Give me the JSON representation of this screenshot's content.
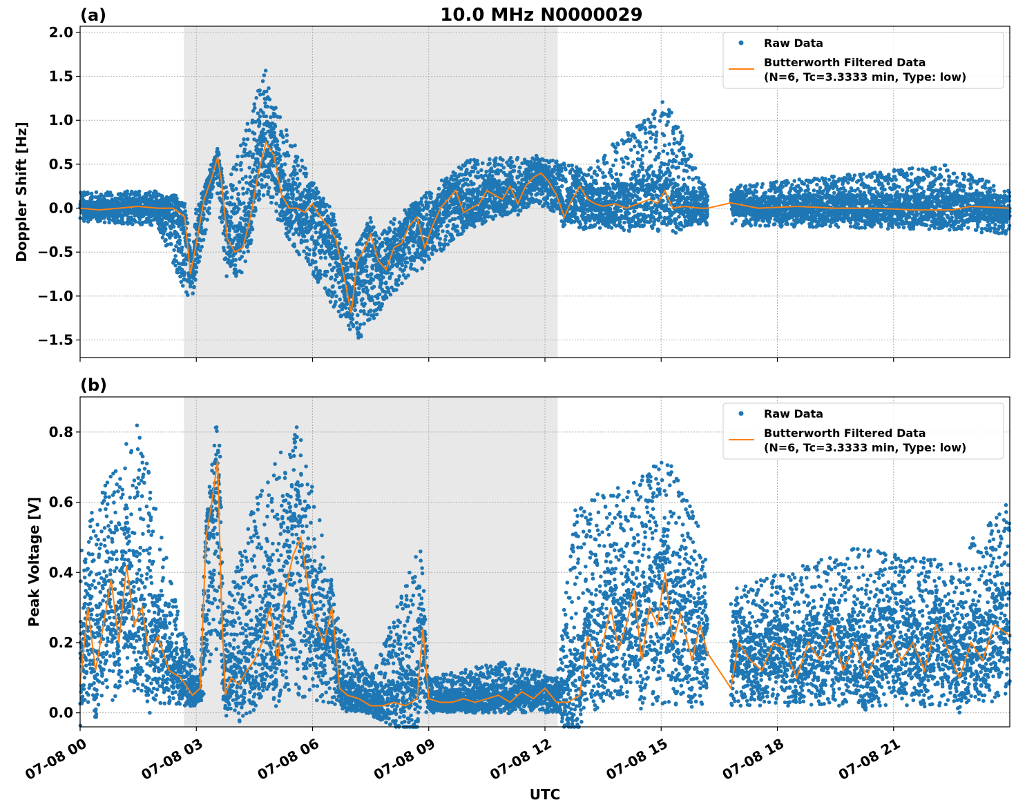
{
  "figure": {
    "title": "10.0 MHz N0000029",
    "xlabel": "UTC"
  },
  "colors": {
    "raw": "#1f77b4",
    "filtered": "#ff7f0e",
    "shade": "#e8e8e8",
    "grid": "#b0b0b0"
  },
  "chart_data": [
    {
      "type": "scatter",
      "panel_label": "(a)",
      "ylabel": "Doppler Shift [Hz]",
      "xlim_hours": [
        0,
        24
      ],
      "ylim": [
        -1.7,
        2.07
      ],
      "yticks": [
        -1.5,
        -1.0,
        -0.5,
        0.0,
        0.5,
        1.0,
        1.5,
        2.0
      ],
      "ytick_labels": [
        "−1.5",
        "−1.0",
        "−0.5",
        "0.0",
        "0.5",
        "1.0",
        "1.5",
        "2.0"
      ],
      "grid": true,
      "legend_position": "upper right",
      "legend": [
        "Raw Data",
        "Butterworth Filtered Data",
        "(N=6, Tc=3.3333 min, Type: low)"
      ],
      "shaded_hours": [
        2.68,
        12.33
      ],
      "data_gap_hours": [
        16.2,
        16.8
      ],
      "series": [
        {
          "name": "Butterworth Filtered Data",
          "x_hours": [
            0.0,
            0.5,
            1.0,
            1.5,
            2.0,
            2.4,
            2.7,
            2.85,
            3.0,
            3.2,
            3.4,
            3.55,
            3.65,
            3.8,
            4.0,
            4.2,
            4.4,
            4.6,
            4.8,
            5.0,
            5.2,
            5.4,
            5.6,
            5.8,
            6.0,
            6.2,
            6.4,
            6.6,
            6.8,
            7.0,
            7.15,
            7.3,
            7.5,
            7.7,
            7.9,
            8.1,
            8.3,
            8.5,
            8.7,
            8.9,
            9.1,
            9.3,
            9.5,
            9.7,
            9.9,
            10.1,
            10.3,
            10.5,
            10.7,
            10.9,
            11.1,
            11.3,
            11.5,
            11.7,
            11.9,
            12.1,
            12.3,
            12.5,
            12.7,
            12.9,
            13.1,
            13.3,
            13.5,
            13.8,
            14.1,
            14.4,
            14.7,
            14.9,
            15.1,
            15.3,
            15.6,
            16.0,
            16.2,
            16.8,
            17.5,
            18.5,
            19.5,
            20.5,
            21.5,
            22.5,
            23.0,
            24.0
          ],
          "y": [
            0.0,
            -0.02,
            0.0,
            0.02,
            0.0,
            0.0,
            -0.1,
            -0.75,
            -0.4,
            0.1,
            0.35,
            0.58,
            0.3,
            -0.35,
            -0.5,
            -0.45,
            -0.1,
            0.4,
            0.75,
            0.6,
            0.15,
            0.0,
            0.0,
            -0.05,
            0.05,
            -0.1,
            -0.2,
            -0.35,
            -0.75,
            -1.2,
            -0.6,
            -0.5,
            -0.3,
            -0.6,
            -0.7,
            -0.45,
            -0.4,
            -0.2,
            -0.1,
            -0.45,
            -0.2,
            0.0,
            0.1,
            0.2,
            -0.05,
            0.0,
            0.05,
            0.2,
            0.15,
            0.1,
            0.25,
            0.05,
            0.25,
            0.35,
            0.4,
            0.3,
            0.15,
            -0.1,
            0.1,
            0.25,
            0.1,
            0.05,
            0.02,
            0.05,
            0.0,
            0.05,
            0.1,
            0.05,
            0.2,
            0.0,
            0.02,
            0.0,
            0.0,
            0.06,
            0.0,
            0.02,
            0.0,
            0.0,
            -0.02,
            -0.02,
            0.02,
            0.0
          ]
        },
        {
          "name": "Raw Data",
          "description_envelope_hours": [
            0.0,
            2.0,
            2.85,
            3.5,
            3.8,
            4.8,
            5.0,
            7.15,
            8.0,
            10.0,
            11.8,
            13.0,
            14.9,
            15.1,
            16.2,
            16.8,
            22.5,
            24.0
          ],
          "envelope_upper": [
            0.18,
            0.2,
            -0.2,
            0.65,
            0.25,
            1.62,
            1.2,
            -0.7,
            -0.15,
            0.55,
            0.6,
            0.45,
            1.15,
            1.25,
            0.2,
            0.25,
            0.5,
            0.2
          ],
          "envelope_lower": [
            -0.15,
            -0.2,
            -1.1,
            0.3,
            -0.85,
            0.2,
            -0.1,
            -1.53,
            -1.0,
            -0.25,
            0.05,
            -0.25,
            -0.2,
            -0.2,
            -0.2,
            -0.2,
            -0.25,
            -0.3
          ]
        }
      ]
    },
    {
      "type": "scatter",
      "panel_label": "(b)",
      "ylabel": "Peak Voltage [V]",
      "xlim_hours": [
        0,
        24
      ],
      "ylim": [
        -0.04,
        0.9
      ],
      "yticks": [
        0.0,
        0.2,
        0.4,
        0.6,
        0.8
      ],
      "ytick_labels": [
        "0.0",
        "0.2",
        "0.4",
        "0.6",
        "0.8"
      ],
      "xtick_hours": [
        0,
        3,
        6,
        9,
        12,
        15,
        18,
        21
      ],
      "xtick_labels": [
        "07-08 00",
        "07-08 03",
        "07-08 06",
        "07-08 09",
        "07-08 12",
        "07-08 15",
        "07-08 18",
        "07-08 21"
      ],
      "grid": true,
      "legend_position": "upper right",
      "legend": [
        "Raw Data",
        "Butterworth Filtered Data",
        "(N=6, Tc=3.3333 min, Type: low)"
      ],
      "shaded_hours": [
        2.68,
        12.33
      ],
      "data_gap_hours": [
        16.2,
        16.8
      ],
      "series": [
        {
          "name": "Butterworth Filtered Data",
          "x_hours": [
            0.0,
            0.2,
            0.4,
            0.6,
            0.8,
            1.0,
            1.2,
            1.4,
            1.6,
            1.8,
            2.0,
            2.3,
            2.6,
            2.9,
            3.1,
            3.25,
            3.4,
            3.55,
            3.65,
            3.75,
            3.9,
            4.1,
            4.3,
            4.5,
            4.7,
            4.9,
            5.1,
            5.3,
            5.5,
            5.7,
            5.9,
            6.1,
            6.3,
            6.5,
            6.7,
            6.9,
            7.2,
            7.5,
            7.8,
            8.1,
            8.4,
            8.7,
            8.85,
            9.0,
            9.3,
            9.6,
            9.9,
            10.2,
            10.5,
            10.8,
            11.1,
            11.4,
            11.7,
            12.0,
            12.3,
            12.6,
            12.9,
            13.1,
            13.3,
            13.5,
            13.7,
            13.9,
            14.1,
            14.3,
            14.5,
            14.7,
            14.9,
            15.1,
            15.3,
            15.5,
            15.8,
            16.0,
            16.2,
            16.8,
            17.0,
            17.3,
            17.6,
            17.9,
            18.2,
            18.5,
            18.8,
            19.1,
            19.4,
            19.7,
            20.0,
            20.3,
            20.6,
            20.9,
            21.2,
            21.5,
            21.8,
            22.1,
            22.4,
            22.7,
            23.0,
            23.3,
            23.6,
            24.0
          ],
          "y": [
            0.08,
            0.3,
            0.12,
            0.25,
            0.38,
            0.2,
            0.42,
            0.25,
            0.3,
            0.15,
            0.22,
            0.12,
            0.1,
            0.05,
            0.07,
            0.5,
            0.6,
            0.72,
            0.3,
            0.05,
            0.1,
            0.08,
            0.12,
            0.15,
            0.2,
            0.3,
            0.15,
            0.35,
            0.45,
            0.5,
            0.35,
            0.25,
            0.2,
            0.3,
            0.07,
            0.05,
            0.04,
            0.02,
            0.02,
            0.03,
            0.02,
            0.04,
            0.24,
            0.04,
            0.03,
            0.03,
            0.04,
            0.03,
            0.04,
            0.05,
            0.03,
            0.06,
            0.04,
            0.07,
            0.03,
            0.03,
            0.05,
            0.22,
            0.15,
            0.2,
            0.3,
            0.18,
            0.25,
            0.35,
            0.15,
            0.3,
            0.25,
            0.4,
            0.2,
            0.28,
            0.15,
            0.25,
            0.17,
            0.07,
            0.2,
            0.15,
            0.12,
            0.2,
            0.18,
            0.1,
            0.2,
            0.15,
            0.25,
            0.12,
            0.2,
            0.1,
            0.18,
            0.22,
            0.15,
            0.2,
            0.12,
            0.25,
            0.18,
            0.1,
            0.2,
            0.15,
            0.25,
            0.22
          ]
        },
        {
          "name": "Raw Data",
          "description_envelope_hours": [
            0.0,
            1.5,
            2.6,
            3.1,
            3.6,
            3.7,
            4.5,
            5.6,
            6.1,
            6.7,
            7.5,
            8.8,
            9.0,
            11.0,
            12.3,
            12.8,
            14.0,
            15.2,
            16.2,
            16.8,
            20.0,
            22.5,
            24.0
          ],
          "envelope_upper": [
            0.52,
            0.83,
            0.25,
            0.1,
            0.85,
            0.3,
            0.6,
            0.83,
            0.6,
            0.25,
            0.1,
            0.49,
            0.1,
            0.15,
            0.1,
            0.6,
            0.65,
            0.73,
            0.47,
            0.35,
            0.47,
            0.43,
            0.62
          ],
          "envelope_lower": [
            0.02,
            0.03,
            0.02,
            0.02,
            0.2,
            0.02,
            0.02,
            0.05,
            0.03,
            0.02,
            0.0,
            0.0,
            0.0,
            0.0,
            0.0,
            0.02,
            0.03,
            0.02,
            0.02,
            0.02,
            0.02,
            0.02,
            0.03
          ]
        }
      ]
    }
  ]
}
